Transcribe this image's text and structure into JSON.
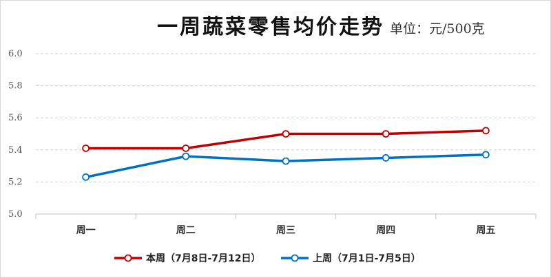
{
  "chart_data": {
    "type": "line",
    "title": "一周蔬菜零售均价走势",
    "unit_label": "单位：元/500克",
    "xlabel": "",
    "ylabel": "",
    "categories": [
      "周一",
      "周二",
      "周三",
      "周四",
      "周五"
    ],
    "ylim": [
      5.0,
      6.0
    ],
    "yticks": [
      "5.0",
      "5.2",
      "5.4",
      "5.6",
      "5.8",
      "6.0"
    ],
    "grid": true,
    "legend_position": "bottom",
    "series": [
      {
        "name": "本周（7月8日-7月12日）",
        "color": "#c00000",
        "values": [
          5.41,
          5.41,
          5.5,
          5.5,
          5.52
        ]
      },
      {
        "name": "上周（7月1日-7月5日）",
        "color": "#0070c0",
        "values": [
          5.23,
          5.36,
          5.33,
          5.35,
          5.37
        ]
      }
    ]
  }
}
